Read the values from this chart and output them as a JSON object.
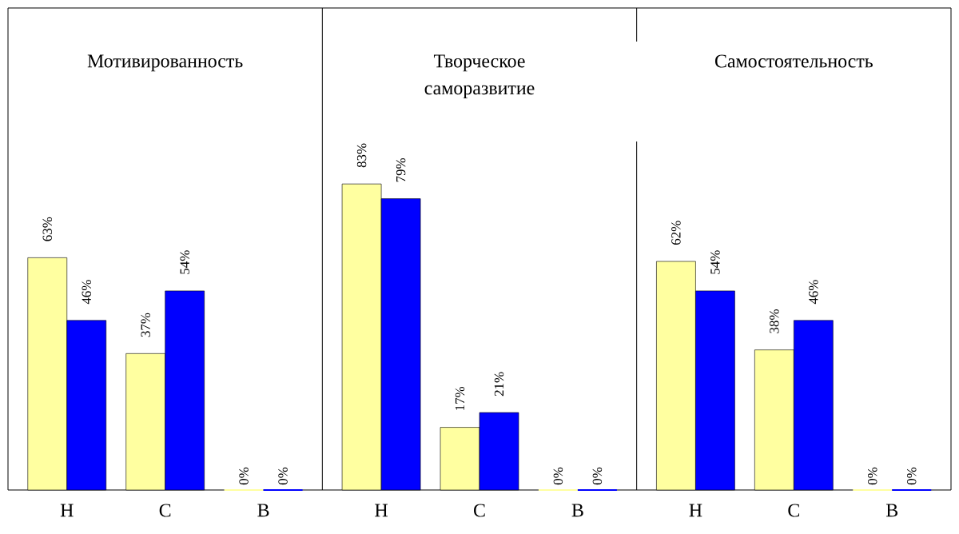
{
  "chart_data": [
    {
      "type": "bar",
      "title": "Мотивированность",
      "categories": [
        "Н",
        "С",
        "В"
      ],
      "series": [
        {
          "color": "#ffffa0",
          "values": [
            63,
            37,
            0
          ],
          "value_labels": [
            "63%",
            "37%",
            "0%"
          ]
        },
        {
          "color": "#0000ff",
          "values": [
            46,
            54,
            0
          ],
          "value_labels": [
            "46%",
            "54%",
            "0%"
          ]
        }
      ]
    },
    {
      "type": "bar",
      "title": "Творческое саморазвитие",
      "categories": [
        "Н",
        "С",
        "В"
      ],
      "series": [
        {
          "color": "#ffffa0",
          "values": [
            83,
            17,
            0
          ],
          "value_labels": [
            "83%",
            "17%",
            "0%"
          ]
        },
        {
          "color": "#0000ff",
          "values": [
            79,
            21,
            0
          ],
          "value_labels": [
            "79%",
            "21%",
            "0%"
          ]
        }
      ]
    },
    {
      "type": "bar",
      "title": "Самостоятельность",
      "categories": [
        "Н",
        "С",
        "В"
      ],
      "series": [
        {
          "color": "#ffffa0",
          "values": [
            62,
            38,
            0
          ],
          "value_labels": [
            "62%",
            "38%",
            "0%"
          ]
        },
        {
          "color": "#0000ff",
          "values": [
            54,
            46,
            0
          ],
          "value_labels": [
            "54%",
            "46%",
            "0%"
          ]
        }
      ]
    }
  ]
}
